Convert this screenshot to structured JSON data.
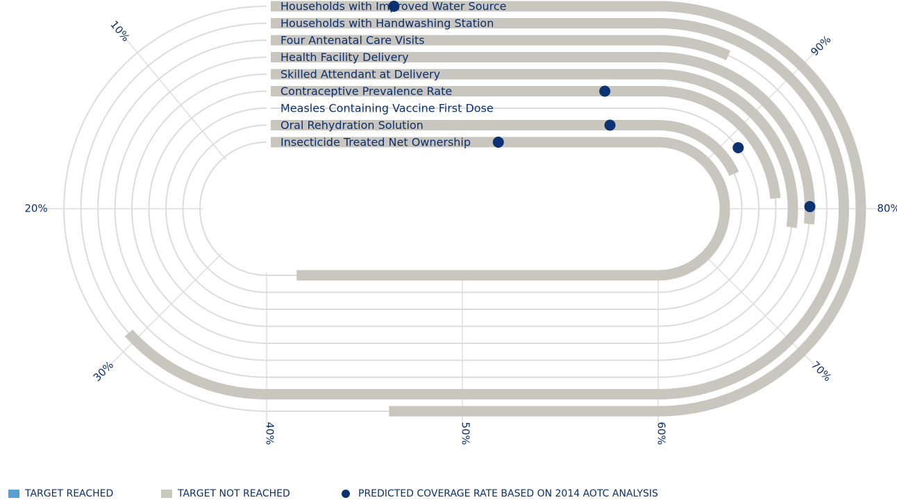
{
  "chart_data": {
    "type": "radial-bar (racetrack)",
    "value_unit": "%",
    "scale_range": [
      0,
      100
    ],
    "ticks": [
      "10%",
      "20%",
      "30%",
      "40%",
      "50%",
      "60%",
      "70%",
      "80%",
      "90%"
    ],
    "series": [
      {
        "name": "Households with Improved Water Source",
        "target_reached": false,
        "coverage": 37,
        "predicted": 94
      },
      {
        "name": "Households with Handwashing Station",
        "target_reached": false,
        "coverage": 22,
        "predicted": null
      },
      {
        "name": "Four Antenatal Care Visits",
        "target_reached": false,
        "coverage": 75,
        "predicted": null
      },
      {
        "name": "Health Facility Delivery",
        "target_reached": false,
        "coverage": 63,
        "predicted": 64
      },
      {
        "name": "Skilled Attendant at Delivery",
        "target_reached": false,
        "coverage": 62,
        "predicted": null
      },
      {
        "name": "Contraceptive Prevalence Rate",
        "target_reached": false,
        "coverage": 63,
        "predicted": 78
      },
      {
        "name": "Measles Containing Vaccine First Dose",
        "target_reached": false,
        "coverage": 0,
        "predicted": 66
      },
      {
        "name": "Oral Rehydration Solution",
        "target_reached": false,
        "coverage": 63,
        "predicted": 74
      },
      {
        "name": "Insecticide Treated Net Ownership",
        "target_reached": false,
        "coverage": 20,
        "predicted": 81
      }
    ],
    "legend": {
      "placement": "bottom-left",
      "items": [
        {
          "label": "TARGET REACHED",
          "color": "#5b9fcf"
        },
        {
          "label": "TARGET NOT REACHED",
          "color": "#c9c6c0"
        },
        {
          "label": "PREDICTED COVERAGE RATE BASED ON 2014 AOTC ANALYSIS",
          "color": "#0d3272"
        }
      ]
    },
    "colors": {
      "track": "#dcdcdc",
      "not_reached": "#c9c6c0",
      "reached": "#5b9fcf",
      "predicted": "#0d3272",
      "text": "#0b2f6b"
    }
  }
}
